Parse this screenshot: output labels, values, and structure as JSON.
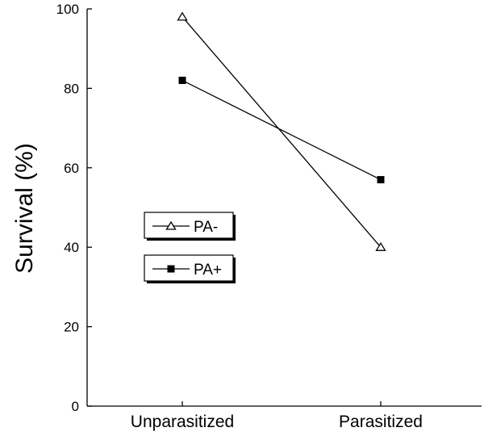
{
  "chart_data": {
    "type": "line",
    "title": "",
    "xlabel": "",
    "ylabel": "Survival (%)",
    "categories": [
      "Unparasitized",
      "Parasitized"
    ],
    "ylim": [
      0,
      100
    ],
    "yticks": [
      "0",
      "20",
      "40",
      "60",
      "80",
      "100"
    ],
    "grid": false,
    "legend_position": "center-left",
    "series": [
      {
        "name": "PA-",
        "marker": "open-triangle",
        "values": [
          98,
          40
        ]
      },
      {
        "name": "PA+",
        "marker": "filled-square",
        "values": [
          82,
          57
        ]
      }
    ]
  }
}
